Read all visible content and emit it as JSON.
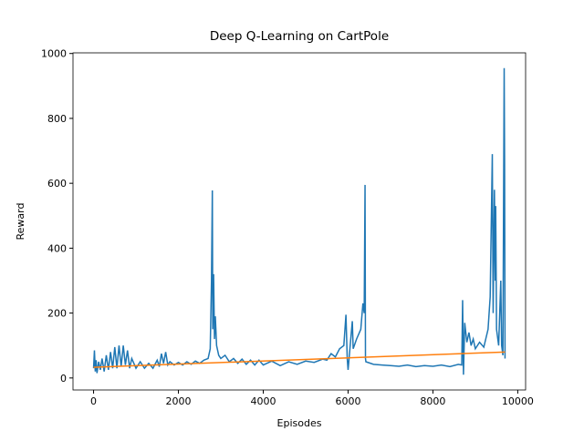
{
  "chart_data": {
    "type": "line",
    "title": "Deep Q-Learning on CartPole",
    "xlabel": "Episodes",
    "ylabel": "Reward",
    "xlim": [
      -485,
      10185
    ],
    "ylim": [
      -37,
      1002
    ],
    "xticks": [
      0,
      2000,
      4000,
      6000,
      8000,
      10000
    ],
    "yticks": [
      0,
      200,
      400,
      600,
      800,
      1000
    ],
    "series": [
      {
        "color": "#1f77b4",
        "x": [
          0,
          20,
          40,
          60,
          80,
          120,
          160,
          200,
          250,
          300,
          350,
          400,
          450,
          500,
          550,
          600,
          650,
          700,
          750,
          800,
          850,
          900,
          1000,
          1100,
          1200,
          1300,
          1400,
          1500,
          1550,
          1600,
          1650,
          1700,
          1750,
          1800,
          1900,
          2000,
          2100,
          2200,
          2300,
          2400,
          2500,
          2600,
          2700,
          2750,
          2780,
          2800,
          2810,
          2830,
          2850,
          2870,
          2900,
          2950,
          3000,
          3100,
          3200,
          3300,
          3400,
          3500,
          3600,
          3700,
          3800,
          3900,
          4000,
          4200,
          4400,
          4600,
          4800,
          5000,
          5200,
          5400,
          5500,
          5600,
          5700,
          5800,
          5900,
          5950,
          5980,
          6000,
          6050,
          6100,
          6120,
          6200,
          6300,
          6350,
          6380,
          6400,
          6410,
          6420,
          6600,
          6800,
          7000,
          7200,
          7400,
          7600,
          7800,
          8000,
          8200,
          8400,
          8600,
          8680,
          8700,
          8720,
          8750,
          8800,
          8850,
          8900,
          8950,
          9000,
          9100,
          9200,
          9300,
          9350,
          9400,
          9420,
          9450,
          9470,
          9480,
          9500,
          9550,
          9600,
          9620,
          9650,
          9680,
          9690,
          9700
        ],
        "values": [
          30,
          85,
          20,
          55,
          15,
          50,
          25,
          60,
          20,
          70,
          25,
          80,
          30,
          95,
          30,
          100,
          35,
          100,
          40,
          85,
          30,
          60,
          30,
          50,
          30,
          45,
          30,
          55,
          35,
          75,
          45,
          80,
          40,
          50,
          40,
          48,
          40,
          50,
          42,
          52,
          45,
          55,
          60,
          90,
          300,
          578,
          150,
          320,
          120,
          190,
          100,
          70,
          60,
          70,
          50,
          60,
          45,
          58,
          42,
          55,
          40,
          55,
          40,
          52,
          38,
          50,
          42,
          52,
          48,
          58,
          55,
          75,
          65,
          90,
          100,
          195,
          60,
          25,
          100,
          175,
          90,
          120,
          150,
          230,
          200,
          595,
          60,
          50,
          42,
          40,
          38,
          36,
          40,
          35,
          38,
          36,
          40,
          35,
          42,
          40,
          240,
          10,
          170,
          110,
          140,
          100,
          120,
          90,
          110,
          95,
          150,
          250,
          690,
          200,
          580,
          300,
          530,
          150,
          100,
          300,
          100,
          70,
          955,
          660,
          60
        ]
      },
      {
        "color": "#ff7f0e",
        "x": [
          0,
          9700
        ],
        "values": [
          33,
          80
        ]
      }
    ]
  }
}
